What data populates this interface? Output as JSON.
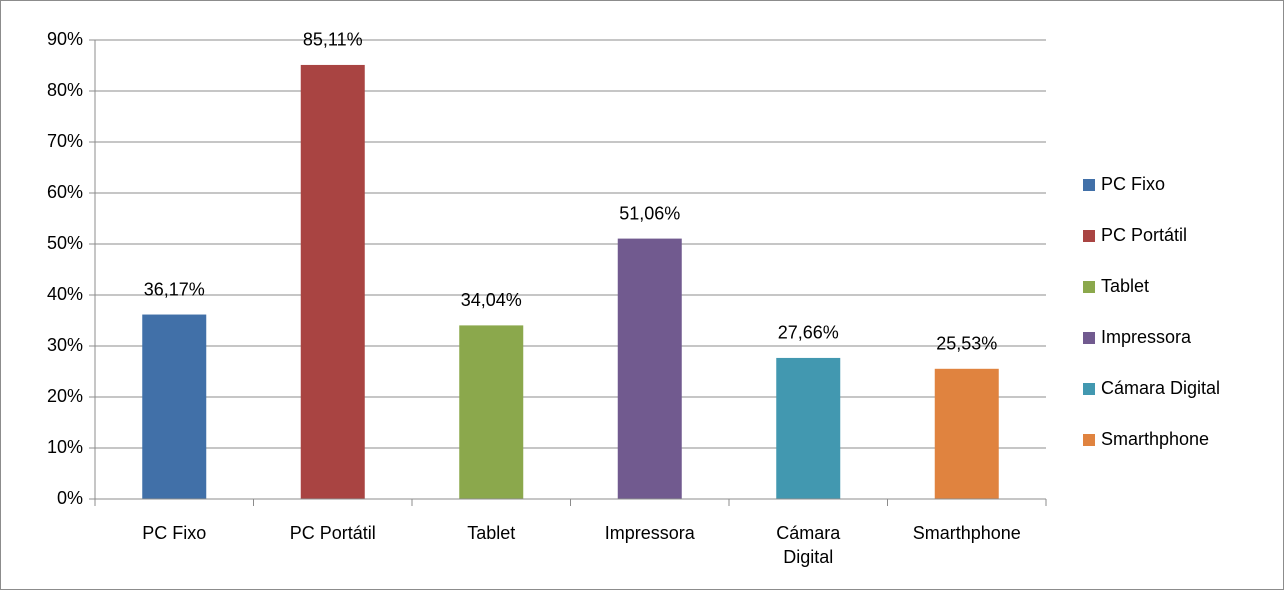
{
  "chart_data": {
    "type": "bar",
    "categories": [
      "PC Fixo",
      "PC Portátil",
      "Tablet",
      "Impressora",
      "Cámara Digital",
      "Smarthphone"
    ],
    "values": [
      36.17,
      85.11,
      34.04,
      51.06,
      27.66,
      25.53
    ],
    "value_labels": [
      "36,17%",
      "85,11%",
      "34,04%",
      "51,06%",
      "27,66%",
      "25,53%"
    ],
    "colors": [
      "#4170a8",
      "#a94442",
      "#8ba84c",
      "#715a8f",
      "#4298b0",
      "#e0833f"
    ],
    "ylim": [
      0,
      90
    ],
    "yticks": [
      {
        "value": 0,
        "label": "0%"
      },
      {
        "value": 10,
        "label": "10%"
      },
      {
        "value": 20,
        "label": "20%"
      },
      {
        "value": 30,
        "label": "30%"
      },
      {
        "value": 40,
        "label": "40%"
      },
      {
        "value": 50,
        "label": "50%"
      },
      {
        "value": 60,
        "label": "60%"
      },
      {
        "value": 70,
        "label": "70%"
      },
      {
        "value": 80,
        "label": "80%"
      },
      {
        "value": 90,
        "label": "90%"
      }
    ],
    "grid": true,
    "legend": "right"
  }
}
